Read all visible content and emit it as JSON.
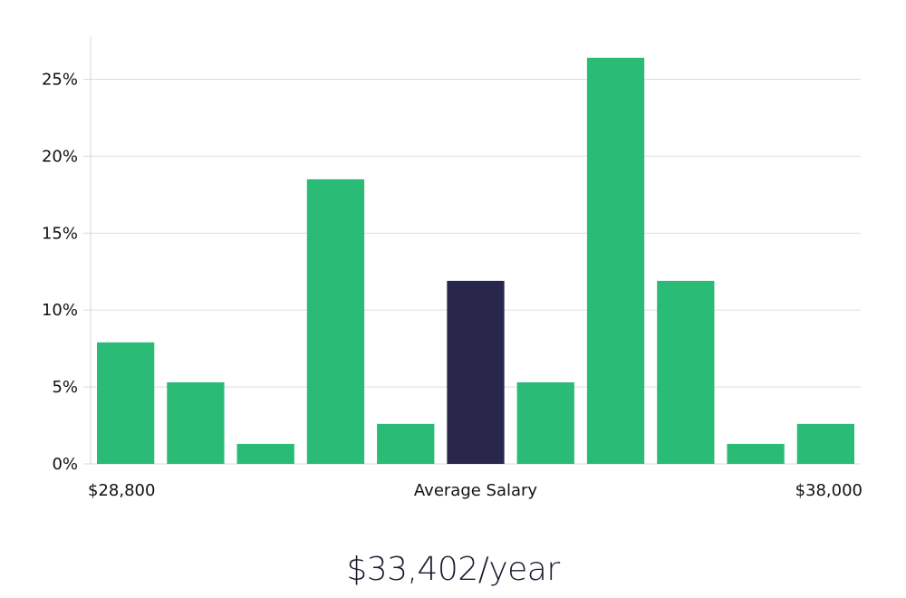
{
  "chart_data": {
    "type": "bar",
    "categories": [
      "1",
      "2",
      "3",
      "4",
      "5",
      "6",
      "7",
      "8",
      "9",
      "10",
      "11"
    ],
    "values": [
      7.9,
      5.3,
      1.3,
      18.5,
      2.6,
      11.9,
      5.3,
      26.4,
      11.9,
      1.3,
      2.6
    ],
    "highlight_index": 5,
    "ylim": [
      0,
      27.8
    ],
    "yticks": [
      0,
      5,
      10,
      15,
      20,
      25
    ],
    "ytick_labels": [
      "0%",
      "5%",
      "10%",
      "15%",
      "20%",
      "25%"
    ],
    "x_left_label": "$28,800",
    "x_center_label": "Average Salary",
    "x_right_label": "$38,000",
    "grid": true,
    "colors": {
      "bar": "#2abb76",
      "highlight": "#28264a"
    }
  },
  "salary_text": "$33,402/year"
}
